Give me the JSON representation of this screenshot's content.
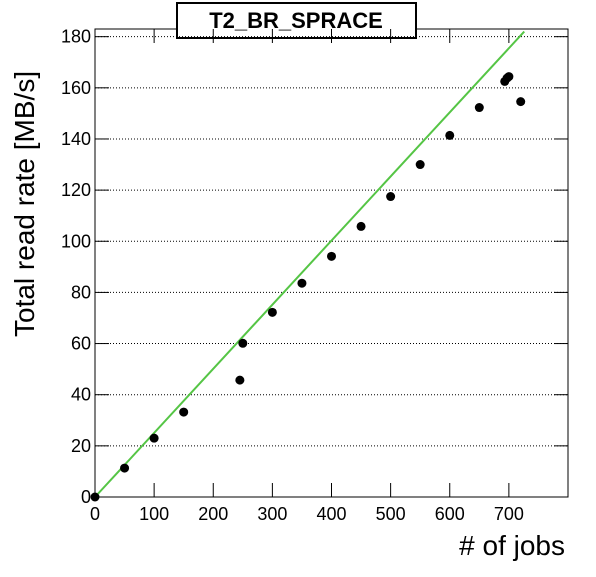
{
  "chart_data": {
    "type": "scatter",
    "title": "T2_BR_SPRACE",
    "xlabel": "# of jobs",
    "ylabel": "Total read rate [MB/s]",
    "x": [
      0,
      50,
      100,
      150,
      245,
      250,
      300,
      350,
      400,
      450,
      500,
      550,
      600,
      650,
      693,
      697,
      700,
      720
    ],
    "values": [
      0,
      11.3,
      23,
      33.2,
      45.7,
      60.1,
      72.2,
      83.6,
      94.1,
      105.8,
      117.5,
      130,
      141.4,
      152.3,
      162.5,
      163.8,
      164.4,
      154.6
    ],
    "color": "#000000",
    "fit": {
      "x": [
        0,
        726
      ],
      "values": [
        0,
        182
      ],
      "color": "#55c545"
    },
    "xlim": [
      0,
      800
    ],
    "ylim": [
      0,
      183
    ],
    "xticks": [
      0,
      100,
      200,
      300,
      400,
      500,
      600,
      700
    ],
    "yticks": [
      0,
      20,
      40,
      60,
      80,
      100,
      120,
      140,
      160,
      180
    ],
    "grid": true
  }
}
